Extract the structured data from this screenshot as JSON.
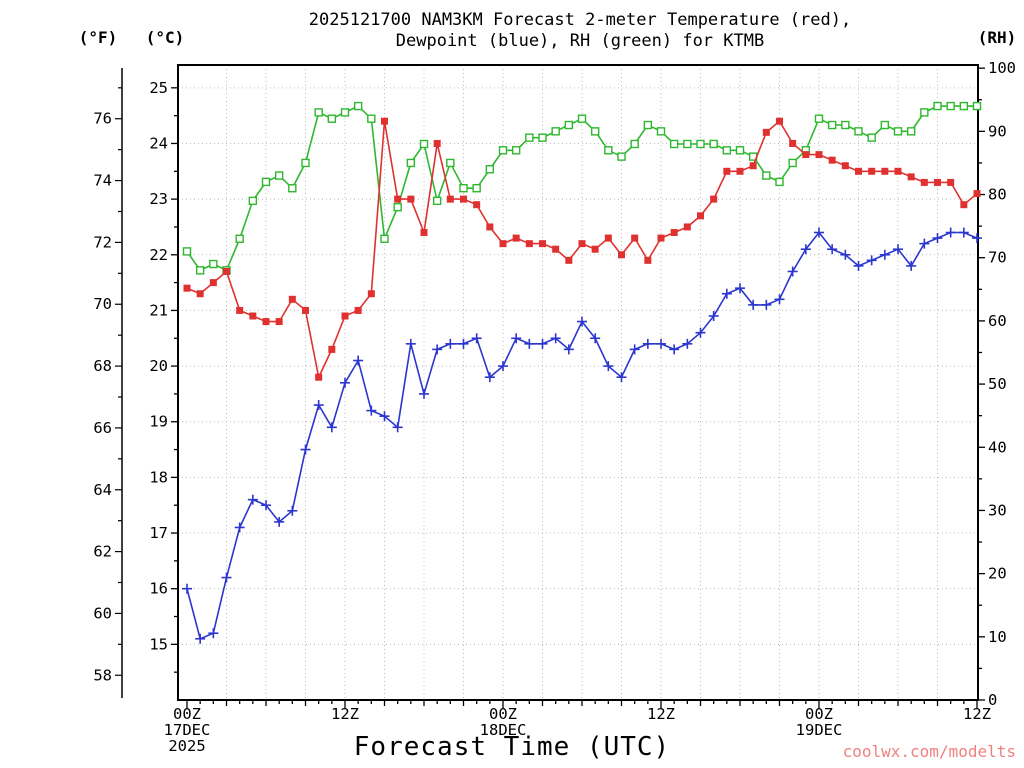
{
  "title": {
    "line1": "2025121700 NAM3KM Forecast 2-meter Temperature (red),",
    "line2": "Dewpoint (blue), RH (green) for KTMB"
  },
  "axis_headers": {
    "fahrenheit": "(°F)",
    "celsius": "(°C)",
    "rh": "(RH)"
  },
  "x_axis": {
    "label": "Forecast Time (UTC)"
  },
  "watermark": "coolwx.com/modelts",
  "colors": {
    "temperature": "#e03131",
    "dewpoint": "#2b36cf",
    "rh": "#2eb82e",
    "grid": "#bbbbbb",
    "axis": "#000000",
    "watermark": "#f08080"
  },
  "chart_data": {
    "type": "line",
    "title": "2025121700 NAM3KM Forecast 2-meter Temperature (red), Dewpoint (blue), RH (green) for KTMB",
    "xlabel": "Forecast Time (UTC)",
    "grid": "dotted",
    "x_hours": [
      0,
      1,
      2,
      3,
      4,
      5,
      6,
      7,
      8,
      9,
      10,
      11,
      12,
      13,
      14,
      15,
      16,
      17,
      18,
      19,
      20,
      21,
      22,
      23,
      24,
      25,
      26,
      27,
      28,
      29,
      30,
      31,
      32,
      33,
      34,
      35,
      36,
      37,
      38,
      39,
      40,
      41,
      42,
      43,
      44,
      45,
      46,
      47,
      48,
      49,
      50,
      51,
      52,
      53,
      54,
      55,
      56,
      57,
      58,
      59,
      60
    ],
    "x_major_ticks": [
      {
        "hour": 0,
        "label": "00Z",
        "date": "17DEC",
        "year": "2025"
      },
      {
        "hour": 12,
        "label": "12Z"
      },
      {
        "hour": 24,
        "label": "00Z",
        "date": "18DEC"
      },
      {
        "hour": 36,
        "label": "12Z"
      },
      {
        "hour": 48,
        "label": "00Z",
        "date": "19DEC"
      },
      {
        "hour": 60,
        "label": "12Z"
      }
    ],
    "y_left_celsius": {
      "ticks": [
        15,
        16,
        17,
        18,
        19,
        20,
        21,
        22,
        23,
        24,
        25
      ],
      "range": [
        14.0,
        25.41
      ]
    },
    "y_left_fahrenheit": {
      "ticks": [
        58,
        60,
        62,
        64,
        66,
        68,
        70,
        72,
        74,
        76
      ],
      "range": [
        57.2,
        77.7
      ]
    },
    "y_right_rh": {
      "ticks": [
        0,
        10,
        20,
        30,
        40,
        50,
        60,
        70,
        80,
        90,
        100
      ],
      "range": [
        0,
        100.5
      ]
    },
    "series": [
      {
        "name": "2-meter Temperature",
        "units": "°C",
        "color_key": "temperature",
        "marker": "filled-square",
        "y_axis": "celsius",
        "values": [
          21.4,
          21.3,
          21.5,
          21.7,
          21.0,
          20.9,
          20.8,
          20.8,
          21.2,
          21.0,
          19.8,
          20.3,
          20.9,
          21.0,
          21.3,
          24.4,
          23.0,
          23.0,
          22.4,
          24.0,
          23.0,
          23.0,
          22.9,
          22.5,
          22.2,
          22.3,
          22.2,
          22.2,
          22.1,
          21.9,
          22.2,
          22.1,
          22.3,
          22.0,
          22.3,
          21.9,
          22.3,
          22.4,
          22.5,
          22.7,
          23.0,
          23.5,
          23.5,
          23.6,
          24.2,
          24.4,
          24.0,
          23.8,
          23.8,
          23.7,
          23.6,
          23.5,
          23.5,
          23.5,
          23.5,
          23.4,
          23.3,
          23.3,
          23.3,
          22.9,
          23.1
        ]
      },
      {
        "name": "2-meter Dewpoint",
        "units": "°C",
        "color_key": "dewpoint",
        "marker": "plus",
        "y_axis": "celsius",
        "values": [
          16.0,
          15.1,
          15.2,
          16.2,
          17.1,
          17.6,
          17.5,
          17.2,
          17.4,
          18.5,
          19.3,
          18.9,
          19.7,
          20.1,
          19.2,
          19.1,
          18.9,
          20.4,
          19.5,
          20.3,
          20.4,
          20.4,
          20.5,
          19.8,
          20.0,
          20.5,
          20.4,
          20.4,
          20.5,
          20.3,
          20.8,
          20.5,
          20.0,
          19.8,
          20.3,
          20.4,
          20.4,
          20.3,
          20.4,
          20.6,
          20.9,
          21.3,
          21.4,
          21.1,
          21.1,
          21.2,
          21.7,
          22.1,
          22.4,
          22.1,
          22.0,
          21.8,
          21.9,
          22.0,
          22.1,
          21.8,
          22.2,
          22.3,
          22.4,
          22.4,
          22.3
        ]
      },
      {
        "name": "Relative Humidity",
        "units": "%",
        "color_key": "rh",
        "marker": "open-square",
        "y_axis": "rh",
        "values": [
          71,
          68,
          69,
          68,
          73,
          79,
          82,
          83,
          81,
          85,
          93,
          92,
          93,
          94,
          92,
          73,
          78,
          85,
          88,
          79,
          85,
          81,
          81,
          84,
          87,
          87,
          89,
          89,
          90,
          91,
          92,
          90,
          87,
          86,
          88,
          91,
          90,
          88,
          88,
          88,
          88,
          87,
          87,
          86,
          83,
          82,
          85,
          87,
          92,
          91,
          91,
          90,
          89,
          91,
          90,
          90,
          93,
          94,
          94,
          94,
          94
        ]
      }
    ]
  }
}
